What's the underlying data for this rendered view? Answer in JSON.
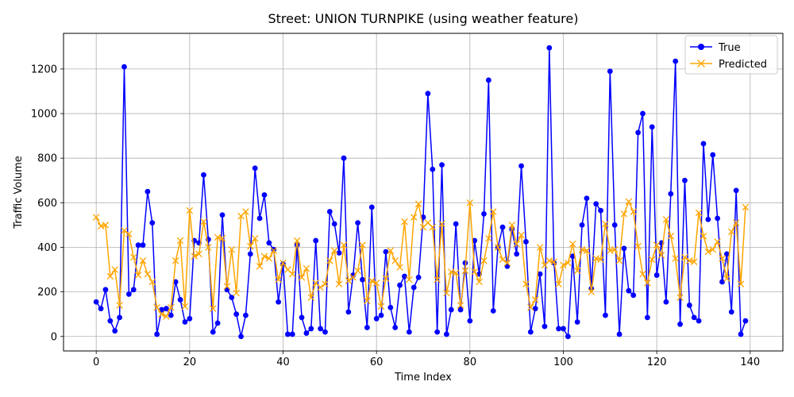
{
  "chart_data": {
    "type": "line",
    "title": "Street: UNION TURNPIKE (using weather feature)",
    "xlabel": "Time Index",
    "ylabel": "Traffic Volume",
    "xlim": [
      -7,
      147
    ],
    "ylim": [
      -65,
      1360
    ],
    "xticks": [
      0,
      20,
      40,
      60,
      80,
      100,
      120,
      140
    ],
    "yticks": [
      0,
      200,
      400,
      600,
      800,
      1000,
      1200
    ],
    "grid": true,
    "legend_position": "top-right",
    "series": [
      {
        "name": "True",
        "color": "#0000ff",
        "marker": "circle",
        "values": [
          155,
          125,
          210,
          70,
          25,
          85,
          1210,
          190,
          210,
          410,
          410,
          650,
          510,
          10,
          120,
          125,
          95,
          245,
          165,
          65,
          80,
          430,
          420,
          725,
          435,
          20,
          60,
          545,
          210,
          175,
          100,
          0,
          95,
          370,
          755,
          530,
          635,
          420,
          390,
          155,
          325,
          10,
          10,
          410,
          85,
          15,
          35,
          430,
          35,
          20,
          560,
          505,
          375,
          800,
          110,
          275,
          510,
          255,
          40,
          580,
          80,
          95,
          380,
          130,
          40,
          230,
          270,
          20,
          220,
          265,
          535,
          1090,
          750,
          20,
          770,
          10,
          120,
          505,
          120,
          330,
          70,
          430,
          280,
          550,
          1150,
          115,
          400,
          490,
          315,
          480,
          370,
          765,
          425,
          20,
          125,
          280,
          45,
          1295,
          330,
          35,
          35,
          0,
          360,
          65,
          500,
          620,
          215,
          595,
          565,
          95,
          1190,
          500,
          10,
          395,
          205,
          185,
          915,
          1000,
          85,
          940,
          275,
          420,
          155,
          640,
          1235,
          55,
          700,
          140,
          85,
          70,
          865,
          525,
          815,
          530,
          245,
          370,
          110,
          655,
          10,
          70
        ]
      },
      {
        "name": "Predicted",
        "color": "#ffa500",
        "marker": "x",
        "values": [
          535,
          495,
          500,
          270,
          300,
          140,
          475,
          460,
          355,
          275,
          340,
          280,
          245,
          130,
          100,
          90,
          130,
          340,
          430,
          135,
          565,
          360,
          370,
          515,
          400,
          125,
          445,
          440,
          225,
          390,
          195,
          540,
          560,
          405,
          440,
          315,
          360,
          350,
          385,
          255,
          330,
          300,
          280,
          430,
          265,
          305,
          175,
          240,
          220,
          235,
          340,
          385,
          235,
          410,
          250,
          265,
          295,
          410,
          160,
          250,
          240,
          135,
          260,
          385,
          340,
          310,
          515,
          255,
          535,
          595,
          490,
          510,
          490,
          255,
          505,
          195,
          290,
          285,
          140,
          295,
          600,
          290,
          245,
          340,
          440,
          560,
          400,
          345,
          330,
          500,
          415,
          455,
          235,
          130,
          165,
          400,
          320,
          340,
          335,
          235,
          320,
          330,
          415,
          295,
          390,
          385,
          200,
          350,
          345,
          505,
          385,
          390,
          340,
          550,
          605,
          560,
          405,
          280,
          240,
          345,
          410,
          365,
          525,
          450,
          350,
          175,
          355,
          340,
          335,
          555,
          450,
          380,
          390,
          425,
          350,
          260,
          470,
          510,
          235,
          580
        ]
      }
    ]
  }
}
